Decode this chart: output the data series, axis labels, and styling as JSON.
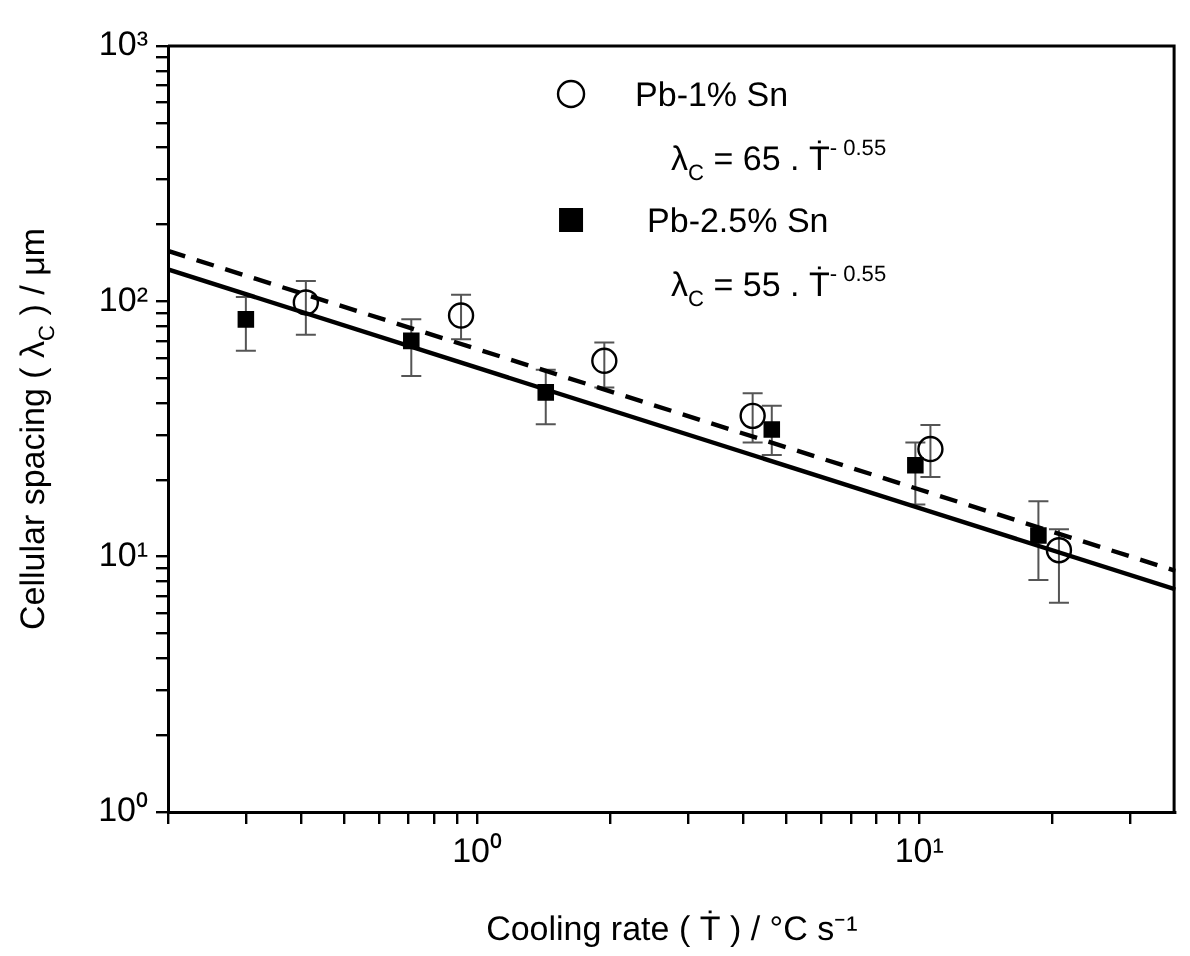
{
  "chart_data": {
    "type": "scatter",
    "xlabel": "Cooling rate ( Ṫ ) / °C s⁻¹",
    "ylabel": "Cellular spacing ( λ$_{C}$ ) / μm",
    "log": "xy",
    "xlim": [
      0.2,
      38
    ],
    "xticks": [
      {
        "value": 0.2,
        "label": null
      },
      {
        "value": 0.3,
        "label": null
      },
      {
        "value": 0.4,
        "label": null
      },
      {
        "value": 0.5,
        "label": null
      },
      {
        "value": 0.6,
        "label": null
      },
      {
        "value": 0.7,
        "label": null
      },
      {
        "value": 0.8,
        "label": null
      },
      {
        "value": 0.9,
        "label": null
      },
      {
        "value": 1,
        "label": "10⁰"
      },
      {
        "value": 2,
        "label": null
      },
      {
        "value": 3,
        "label": null
      },
      {
        "value": 4,
        "label": null
      },
      {
        "value": 5,
        "label": null
      },
      {
        "value": 6,
        "label": null
      },
      {
        "value": 7,
        "label": null
      },
      {
        "value": 8,
        "label": null
      },
      {
        "value": 9,
        "label": null
      },
      {
        "value": 10,
        "label": "10¹"
      },
      {
        "value": 20,
        "label": null
      },
      {
        "value": 30,
        "label": null
      }
    ],
    "ylim": [
      1,
      1000
    ],
    "yticks": [
      {
        "value": 1,
        "label": "10⁰"
      },
      {
        "value": 2,
        "label": null
      },
      {
        "value": 3,
        "label": null
      },
      {
        "value": 4,
        "label": null
      },
      {
        "value": 5,
        "label": null
      },
      {
        "value": 6,
        "label": null
      },
      {
        "value": 7,
        "label": null
      },
      {
        "value": 8,
        "label": null
      },
      {
        "value": 9,
        "label": null
      },
      {
        "value": 10,
        "label": "10¹"
      },
      {
        "value": 20,
        "label": null
      },
      {
        "value": 30,
        "label": null
      },
      {
        "value": 40,
        "label": null
      },
      {
        "value": 50,
        "label": null
      },
      {
        "value": 60,
        "label": null
      },
      {
        "value": 70,
        "label": null
      },
      {
        "value": 80,
        "label": null
      },
      {
        "value": 90,
        "label": null
      },
      {
        "value": 100,
        "label": "10²"
      },
      {
        "value": 200,
        "label": null
      },
      {
        "value": 300,
        "label": null
      },
      {
        "value": 400,
        "label": null
      },
      {
        "value": 500,
        "label": null
      },
      {
        "value": 600,
        "label": null
      },
      {
        "value": 700,
        "label": null
      },
      {
        "value": 800,
        "label": null
      },
      {
        "value": 900,
        "label": null
      },
      {
        "value": 1000,
        "label": "10³"
      }
    ],
    "grid": false,
    "legend": "top",
    "annotations": [
      "λ$_{C}$ = 65 . Ṫ$^{- 0.55}$",
      "λ$_{C}$ = 55 . Ṫ$^{- 0.55}$"
    ],
    "series": [
      {
        "name": "Pb-1% Sn",
        "type": "scatter",
        "marker": "circle",
        "color": "#000000",
        "x": [
          0.41,
          0.92,
          1.94,
          4.2,
          10.6,
          20.7
        ],
        "values": [
          99,
          88,
          58.5,
          35.6,
          26.4,
          10.6
        ],
        "errors": [
          [
            74,
            120
          ],
          [
            71,
            106
          ],
          [
            46,
            69
          ],
          [
            28,
            43.7
          ],
          [
            20.5,
            32.8
          ],
          [
            6.6,
            12.8
          ]
        ]
      },
      {
        "name": "Pb-2.5% Sn",
        "type": "scatter",
        "marker": "square",
        "color": "#000000",
        "x": [
          0.3,
          0.71,
          1.43,
          4.64,
          9.8,
          18.6
        ],
        "values": [
          85,
          70,
          44,
          31.5,
          22.8,
          12.1
        ],
        "errors": [
          [
            64,
            104
          ],
          [
            51,
            85
          ],
          [
            33,
            54
          ],
          [
            25,
            39
          ],
          [
            16,
            28
          ],
          [
            8.1,
            16.5
          ]
        ]
      },
      {
        "type": "line",
        "marker": "none",
        "line_style": "dashed",
        "color": "#000000",
        "x": [
          0.2,
          38
        ],
        "values": [
          157.5,
          8.8
        ]
      },
      {
        "type": "line",
        "marker": "none",
        "line_style": "solid",
        "color": "#000000",
        "x": [
          0.2,
          38
        ],
        "values": [
          133.3,
          7.44
        ]
      }
    ]
  }
}
